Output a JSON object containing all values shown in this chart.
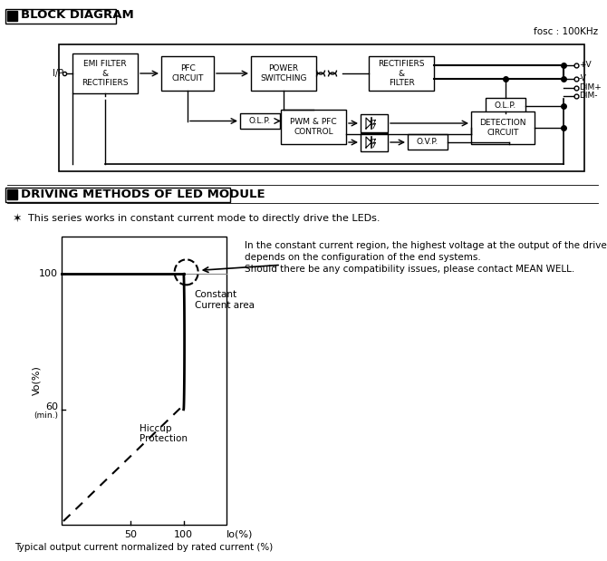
{
  "bg_color": "#ffffff",
  "title1": "BLOCK DIAGRAM",
  "title2": "DRIVING METHODS OF LED MODULE",
  "fosc_label": "fosc : 100KHz",
  "note_symbol": "✶",
  "note_text": "  This series works in constant current mode to directly drive the LEDs.",
  "right_text_line1": "In the constant current region, the highest voltage at the output of the driver",
  "right_text_line2": "depends on the configuration of the end systems.",
  "right_text_line3": "Should there be any compatibility issues, please contact MEAN WELL.",
  "caption": "Typical output current normalized by rated current (%)",
  "constant_current_label": "Constant\nCurrent area",
  "hiccup_label": "Hiccup\nProtection"
}
